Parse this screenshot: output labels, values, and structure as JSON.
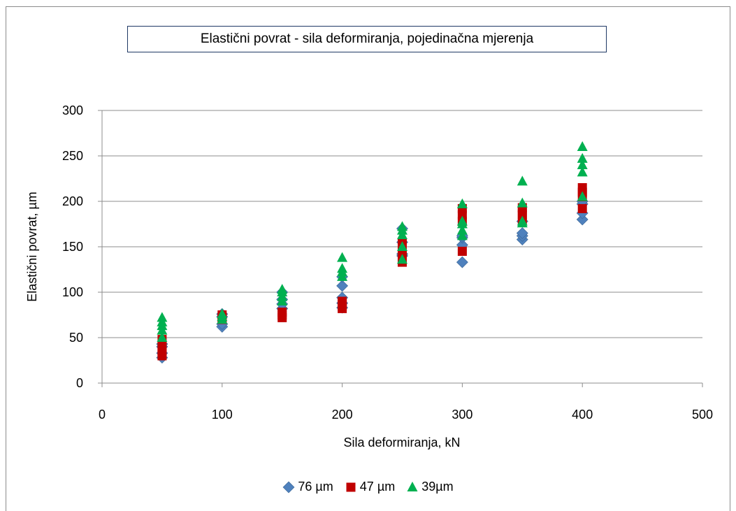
{
  "chart_data": {
    "type": "scatter",
    "title": "Elastični povrat - sila deformiranja, pojedinačna mjerenja",
    "xlabel": "Sila deformiranja, kN",
    "ylabel": "Elastični povrat, µm",
    "xlim": [
      0,
      500
    ],
    "ylim": [
      0,
      300
    ],
    "xticks": [
      0,
      100,
      200,
      300,
      400,
      500
    ],
    "yticks": [
      0,
      50,
      100,
      150,
      200,
      250,
      300
    ],
    "grid": "horizontal",
    "legend_position": "bottom",
    "series": [
      {
        "name": "76 µm",
        "marker": "diamond",
        "color": "#4f81bd",
        "points": [
          [
            50,
            28
          ],
          [
            50,
            33
          ],
          [
            50,
            40
          ],
          [
            50,
            43
          ],
          [
            100,
            62
          ],
          [
            100,
            65
          ],
          [
            100,
            73
          ],
          [
            100,
            76
          ],
          [
            150,
            82
          ],
          [
            150,
            87
          ],
          [
            150,
            92
          ],
          [
            150,
            100
          ],
          [
            200,
            83
          ],
          [
            200,
            88
          ],
          [
            200,
            94
          ],
          [
            200,
            107
          ],
          [
            200,
            117
          ],
          [
            250,
            140
          ],
          [
            250,
            142
          ],
          [
            250,
            155
          ],
          [
            250,
            170
          ],
          [
            300,
            133
          ],
          [
            300,
            152
          ],
          [
            300,
            160
          ],
          [
            300,
            162
          ],
          [
            350,
            158
          ],
          [
            350,
            162
          ],
          [
            350,
            165
          ],
          [
            350,
            178
          ],
          [
            400,
            180
          ],
          [
            400,
            187
          ],
          [
            400,
            197
          ],
          [
            400,
            200
          ]
        ]
      },
      {
        "name": "47 µm",
        "marker": "square",
        "color": "#c00000",
        "points": [
          [
            50,
            30
          ],
          [
            50,
            35
          ],
          [
            50,
            40
          ],
          [
            50,
            48
          ],
          [
            100,
            70
          ],
          [
            100,
            72
          ],
          [
            100,
            75
          ],
          [
            150,
            72
          ],
          [
            150,
            75
          ],
          [
            150,
            78
          ],
          [
            200,
            82
          ],
          [
            200,
            85
          ],
          [
            200,
            88
          ],
          [
            200,
            90
          ],
          [
            250,
            133
          ],
          [
            250,
            140
          ],
          [
            250,
            150
          ],
          [
            250,
            155
          ],
          [
            300,
            145
          ],
          [
            300,
            178
          ],
          [
            300,
            185
          ],
          [
            300,
            192
          ],
          [
            350,
            180
          ],
          [
            350,
            185
          ],
          [
            350,
            190
          ],
          [
            350,
            193
          ],
          [
            400,
            192
          ],
          [
            400,
            205
          ],
          [
            400,
            210
          ],
          [
            400,
            215
          ]
        ]
      },
      {
        "name": "39µm",
        "marker": "triangle",
        "color": "#00b050",
        "points": [
          [
            50,
            50
          ],
          [
            50,
            58
          ],
          [
            50,
            63
          ],
          [
            50,
            67
          ],
          [
            50,
            72
          ],
          [
            100,
            70
          ],
          [
            100,
            73
          ],
          [
            100,
            76
          ],
          [
            150,
            90
          ],
          [
            150,
            95
          ],
          [
            150,
            100
          ],
          [
            150,
            103
          ],
          [
            200,
            117
          ],
          [
            200,
            122
          ],
          [
            200,
            126
          ],
          [
            200,
            138
          ],
          [
            250,
            136
          ],
          [
            250,
            150
          ],
          [
            250,
            163
          ],
          [
            250,
            168
          ],
          [
            250,
            172
          ],
          [
            300,
            162
          ],
          [
            300,
            168
          ],
          [
            300,
            175
          ],
          [
            300,
            178
          ],
          [
            300,
            197
          ],
          [
            350,
            176
          ],
          [
            350,
            178
          ],
          [
            350,
            198
          ],
          [
            350,
            222
          ],
          [
            400,
            205
          ],
          [
            400,
            232
          ],
          [
            400,
            240
          ],
          [
            400,
            247
          ],
          [
            400,
            260
          ]
        ]
      }
    ]
  }
}
